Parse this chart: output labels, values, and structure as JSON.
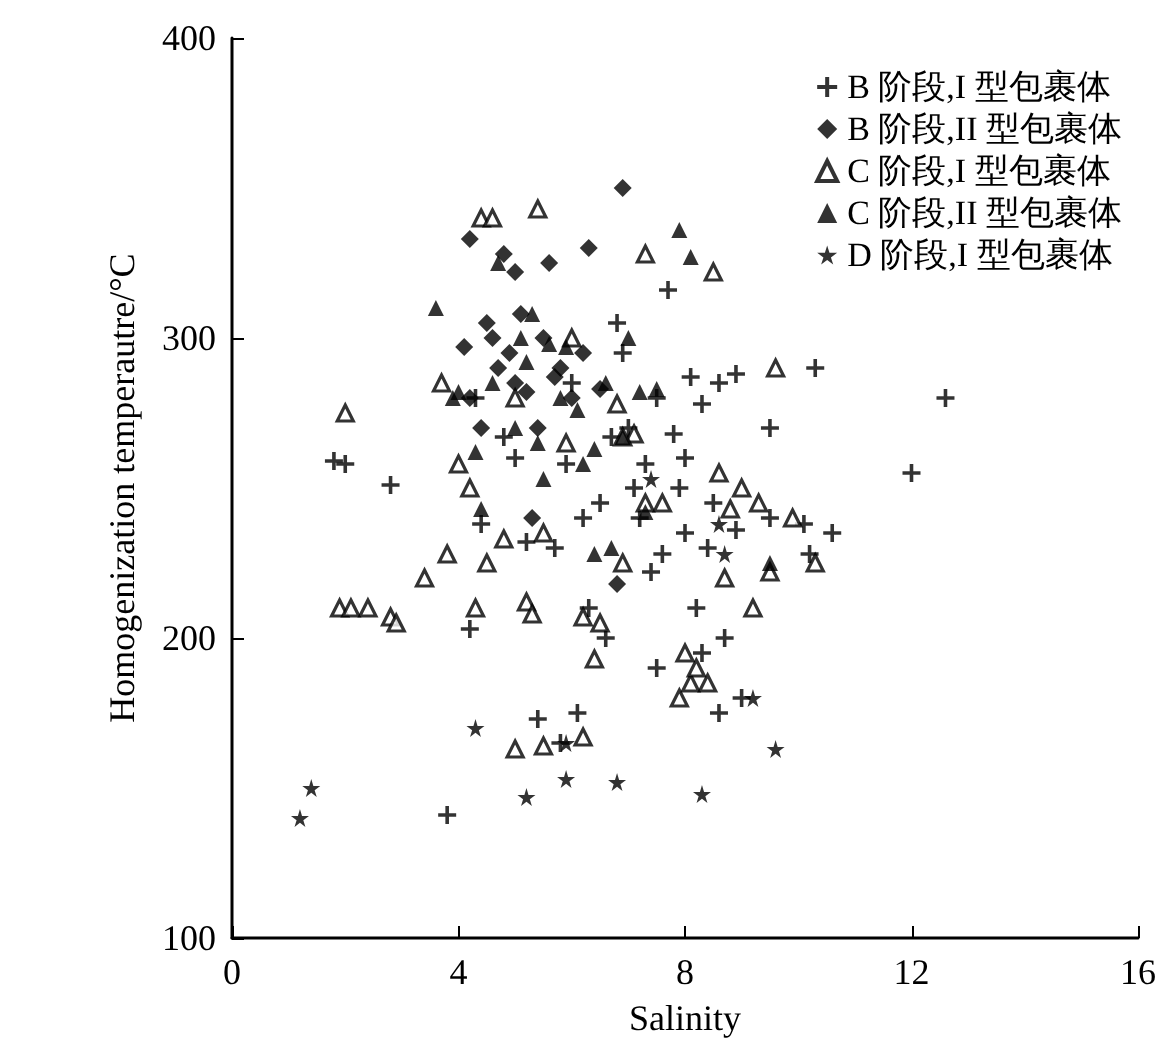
{
  "chart_data": {
    "type": "scatter",
    "xlabel": "Salinity",
    "ylabel": "Homogenization temperautre/°C",
    "xlim": [
      0,
      16
    ],
    "xticks": [
      0,
      4,
      8,
      12,
      16
    ],
    "ylim": [
      100,
      400
    ],
    "yticks": [
      100,
      200,
      300,
      400
    ],
    "grid": false,
    "legend": "top right",
    "series": [
      {
        "name": "B 阶段,I 型包裹体",
        "color": "#000000",
        "marker": "cross",
        "x": [
          1.8,
          2.0,
          2.8,
          3.8,
          4.2,
          4.3,
          4.4,
          5.0,
          5.2,
          5.4,
          5.7,
          5.8,
          5.9,
          6.1,
          6.2,
          6.3,
          6.5,
          6.6,
          6.8,
          6.9,
          7.0,
          7.1,
          7.2,
          7.3,
          7.4,
          7.5,
          7.5,
          7.6,
          7.8,
          7.9,
          8.0,
          8.1,
          8.2,
          8.3,
          8.3,
          8.4,
          8.5,
          8.6,
          8.7,
          8.9,
          8.9,
          9.0,
          9.5,
          10.1,
          10.3,
          10.6,
          12.0,
          12.6,
          6.0,
          4.8,
          8.6,
          10.2,
          7.7,
          8.0,
          6.7,
          9.5
        ],
        "values": [
          259,
          258,
          251,
          141,
          203,
          280,
          238,
          260,
          232,
          173,
          230,
          165,
          258,
          175,
          240,
          210,
          245,
          200,
          305,
          295,
          270,
          250,
          240,
          258,
          222,
          280,
          190,
          228,
          268,
          250,
          235,
          287,
          210,
          278,
          195,
          230,
          245,
          285,
          200,
          236,
          288,
          180,
          240,
          238,
          290,
          235,
          255,
          280,
          285,
          267,
          175,
          228,
          316,
          260,
          267,
          270
        ]
      },
      {
        "name": "B 阶段,II 型包裹体",
        "color": "#000000",
        "marker": "diamond",
        "x": [
          4.2,
          4.8,
          5.6,
          6.3,
          6.9,
          4.1,
          4.5,
          4.7,
          4.9,
          5.0,
          5.2,
          5.4,
          5.5,
          5.8,
          6.0,
          6.2,
          4.2,
          4.6,
          5.1,
          6.5,
          5.3,
          6.8,
          4.4,
          5.0,
          5.7
        ],
        "values": [
          333,
          328,
          325,
          330,
          350,
          297,
          305,
          290,
          295,
          285,
          282,
          270,
          300,
          290,
          280,
          295,
          280,
          300,
          308,
          283,
          240,
          218,
          270,
          322,
          287
        ]
      },
      {
        "name": "C 阶段,I 型包裹体",
        "color": "#000000",
        "marker": "triangle-open",
        "x": [
          1.9,
          2.1,
          2.0,
          2.4,
          2.8,
          2.9,
          3.4,
          3.7,
          3.8,
          4.0,
          4.2,
          4.3,
          4.4,
          4.6,
          4.5,
          4.8,
          5.0,
          5.2,
          5.3,
          5.4,
          5.5,
          6.2,
          5.5,
          6.0,
          6.2,
          6.4,
          6.5,
          6.8,
          6.9,
          7.1,
          7.3,
          7.3,
          7.6,
          7.9,
          8.0,
          8.1,
          8.2,
          8.4,
          8.5,
          8.6,
          8.7,
          9.0,
          9.2,
          9.3,
          9.5,
          9.6,
          9.9,
          10.3,
          6.9,
          5.9,
          8.8,
          5.0
        ],
        "values": [
          210,
          210,
          275,
          210,
          207,
          205,
          220,
          285,
          228,
          258,
          250,
          210,
          340,
          340,
          225,
          233,
          163,
          212,
          208,
          343,
          164,
          167,
          235,
          300,
          207,
          193,
          205,
          278,
          225,
          268,
          328,
          245,
          245,
          180,
          195,
          185,
          190,
          185,
          322,
          255,
          220,
          250,
          210,
          245,
          222,
          290,
          240,
          225,
          267,
          265,
          243,
          280
        ]
      },
      {
        "name": "C 阶段,II 型包裹体",
        "color": "#000000",
        "marker": "triangle",
        "x": [
          3.6,
          3.9,
          4.6,
          4.7,
          5.0,
          5.2,
          5.3,
          5.4,
          5.5,
          5.6,
          5.8,
          5.9,
          6.1,
          6.2,
          6.4,
          6.6,
          6.7,
          7.0,
          7.2,
          7.3,
          7.9,
          4.4,
          4.0,
          5.1,
          6.4,
          6.9,
          8.1,
          7.5,
          9.5,
          4.3
        ],
        "values": [
          310,
          280,
          285,
          325,
          270,
          292,
          308,
          265,
          253,
          298,
          280,
          297,
          276,
          258,
          263,
          285,
          230,
          300,
          282,
          242,
          336,
          243,
          282,
          300,
          228,
          267,
          327,
          283,
          225,
          262
        ]
      },
      {
        "name": "D 阶段,I 型包裹体",
        "color": "#000000",
        "marker": "star",
        "x": [
          1.2,
          1.4,
          4.3,
          5.2,
          5.9,
          6.8,
          8.3,
          9.6,
          9.2,
          5.9,
          8.6,
          7.4,
          8.7
        ],
        "values": [
          140,
          150,
          170,
          147,
          153,
          152,
          148,
          163,
          180,
          165,
          238,
          253,
          228
        ]
      }
    ]
  }
}
